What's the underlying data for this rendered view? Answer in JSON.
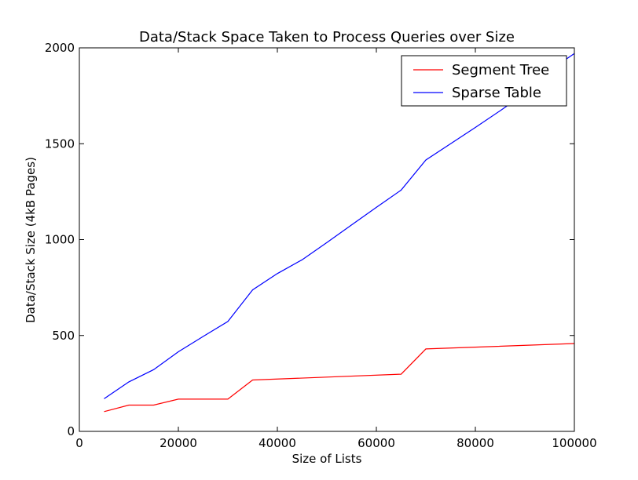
{
  "chart_data": {
    "type": "line",
    "title": "Data/Stack Space Taken to Process Queries over Size",
    "xlabel": "Size of Lists",
    "ylabel": "Data/Stack Size (4kB Pages)",
    "xlim": [
      0,
      100000
    ],
    "ylim": [
      0,
      2000
    ],
    "xticks": [
      0,
      20000,
      40000,
      60000,
      80000,
      100000
    ],
    "yticks": [
      0,
      500,
      1000,
      1500,
      2000
    ],
    "grid": false,
    "legend_position": "top-right",
    "series": [
      {
        "name": "Segment Tree",
        "color": "#ff0000",
        "x": [
          5000,
          10000,
          15000,
          20000,
          25000,
          30000,
          35000,
          65000,
          70000,
          100000
        ],
        "y": [
          103,
          137,
          137,
          168,
          168,
          168,
          268,
          298,
          430,
          458
        ]
      },
      {
        "name": "Sparse Table",
        "color": "#0000ff",
        "x": [
          5000,
          10000,
          15000,
          20000,
          25000,
          30000,
          35000,
          40000,
          45000,
          50000,
          55000,
          60000,
          65000,
          70000,
          75000,
          80000,
          85000,
          90000,
          95000,
          100000
        ],
        "y": [
          170,
          258,
          322,
          415,
          495,
          573,
          738,
          823,
          895,
          985,
          1077,
          1168,
          1258,
          1415,
          1500,
          1585,
          1672,
          1762,
          1882,
          1970
        ]
      }
    ]
  }
}
